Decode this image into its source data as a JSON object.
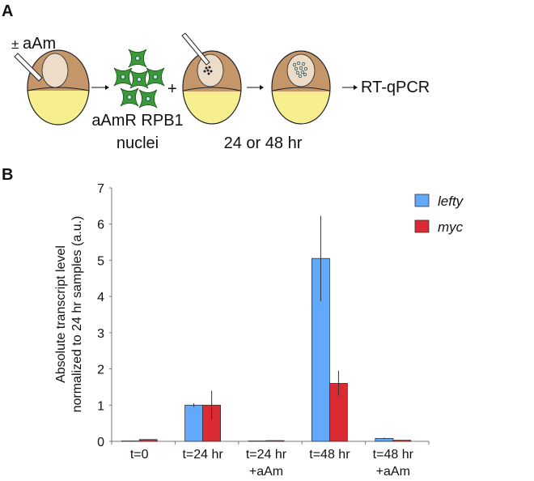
{
  "panel_a": {
    "label": "A",
    "pm_symbol": "±",
    "treatment": "aAm",
    "cells_label_line1": "aAmR RPB1",
    "cells_label_line2": "nuclei",
    "plus": "+",
    "time_label": "24 or 48 hr",
    "readout": "RT-qPCR",
    "colors": {
      "animal": "#c4966a",
      "yolk": "#f7ef8f",
      "nucleus": "#ecdcc8",
      "cell": "#3a9a3a"
    }
  },
  "panel_b": {
    "label": "B"
  },
  "chart_data": {
    "type": "bar",
    "title": "",
    "xlabel": "",
    "ylabel_line1": "Absolute transcript level",
    "ylabel_line2": "normalized to 24 hr samples (a.u.)",
    "ylim": [
      0,
      7
    ],
    "yticks": [
      "0",
      "1",
      "2",
      "3",
      "4",
      "5",
      "6",
      "7"
    ],
    "categories": [
      [
        "t=0"
      ],
      [
        "t=24 hr"
      ],
      [
        "t=24 hr",
        "+aAm"
      ],
      [
        "t=48 hr"
      ],
      [
        "t=48 hr",
        "+aAm"
      ]
    ],
    "legend_placement": "top-right",
    "series": [
      {
        "name": "lefty",
        "color": "#62a8fb",
        "values": [
          0.01,
          1.0,
          0.01,
          5.05,
          0.08
        ],
        "errors": [
          0.0,
          0.05,
          0.0,
          1.18,
          0.02
        ]
      },
      {
        "name": "myc",
        "color": "#db2a31",
        "values": [
          0.05,
          1.0,
          0.02,
          1.6,
          0.03
        ],
        "errors": [
          0.01,
          0.4,
          0.0,
          0.35,
          0.0
        ]
      }
    ]
  }
}
